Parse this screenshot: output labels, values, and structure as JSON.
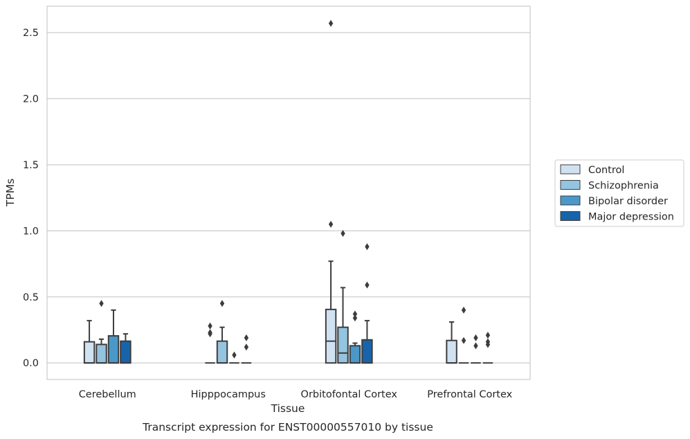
{
  "chart_data": {
    "type": "box",
    "xlabel": "Tissue",
    "ylabel": "TPMs",
    "caption": "Transcript expression for ENST00000557010 by tissue",
    "categories": [
      "Cerebellum",
      "Hipppocampus",
      "Orbitofontal Cortex",
      "Prefrontal Cortex"
    ],
    "ylim": [
      -0.125,
      2.7
    ],
    "yticks": [
      0.0,
      0.5,
      1.0,
      1.5,
      2.0,
      2.5
    ],
    "ytick_labels": [
      "0.0",
      "0.5",
      "1.0",
      "1.5",
      "2.0",
      "2.5"
    ],
    "grid": true,
    "legend_position": "right",
    "series": [
      {
        "name": "Control",
        "color": "#d0e1f2",
        "boxes": [
          {
            "q1": 0.0,
            "median": 0.0,
            "q3": 0.16,
            "whisker_low": 0.0,
            "whisker_high": 0.32,
            "outliers": []
          },
          {
            "q1": 0.0,
            "median": 0.0,
            "q3": 0.0,
            "whisker_low": 0.0,
            "whisker_high": 0.0,
            "outliers": [
              0.22,
              0.23,
              0.28
            ]
          },
          {
            "q1": 0.0,
            "median": 0.165,
            "q3": 0.405,
            "whisker_low": 0.0,
            "whisker_high": 0.77,
            "outliers": [
              1.05,
              2.57
            ]
          },
          {
            "q1": 0.0,
            "median": 0.0,
            "q3": 0.17,
            "whisker_low": 0.0,
            "whisker_high": 0.31,
            "outliers": []
          }
        ]
      },
      {
        "name": "Schizophrenia",
        "color": "#94c4df",
        "boxes": [
          {
            "q1": 0.0,
            "median": 0.0,
            "q3": 0.14,
            "whisker_low": 0.0,
            "whisker_high": 0.18,
            "outliers": [
              0.45
            ]
          },
          {
            "q1": 0.0,
            "median": 0.0,
            "q3": 0.165,
            "whisker_low": 0.0,
            "whisker_high": 0.27,
            "outliers": [
              0.45
            ]
          },
          {
            "q1": 0.0,
            "median": 0.075,
            "q3": 0.27,
            "whisker_low": 0.0,
            "whisker_high": 0.57,
            "outliers": [
              0.98
            ]
          },
          {
            "q1": 0.0,
            "median": 0.0,
            "q3": 0.0,
            "whisker_low": 0.0,
            "whisker_high": 0.0,
            "outliers": [
              0.17,
              0.4
            ]
          }
        ]
      },
      {
        "name": "Bipolar disorder",
        "color": "#4a98c9",
        "boxes": [
          {
            "q1": 0.0,
            "median": 0.0,
            "q3": 0.205,
            "whisker_low": 0.0,
            "whisker_high": 0.4,
            "outliers": []
          },
          {
            "q1": 0.0,
            "median": 0.0,
            "q3": 0.0,
            "whisker_low": 0.0,
            "whisker_high": 0.0,
            "outliers": [
              0.06
            ]
          },
          {
            "q1": 0.0,
            "median": 0.0,
            "q3": 0.13,
            "whisker_low": 0.0,
            "whisker_high": 0.15,
            "outliers": [
              0.34,
              0.37
            ]
          },
          {
            "q1": 0.0,
            "median": 0.0,
            "q3": 0.0,
            "whisker_low": 0.0,
            "whisker_high": 0.0,
            "outliers": [
              0.13,
              0.19
            ]
          }
        ]
      },
      {
        "name": "Major depression",
        "color": "#1764ab",
        "boxes": [
          {
            "q1": 0.0,
            "median": 0.0,
            "q3": 0.165,
            "whisker_low": 0.0,
            "whisker_high": 0.22,
            "outliers": []
          },
          {
            "q1": 0.0,
            "median": 0.0,
            "q3": 0.0,
            "whisker_low": 0.0,
            "whisker_high": 0.0,
            "outliers": [
              0.12,
              0.19
            ]
          },
          {
            "q1": 0.0,
            "median": 0.0,
            "q3": 0.175,
            "whisker_low": 0.0,
            "whisker_high": 0.32,
            "outliers": [
              0.59,
              0.88
            ]
          },
          {
            "q1": 0.0,
            "median": 0.0,
            "q3": 0.0,
            "whisker_low": 0.0,
            "whisker_high": 0.0,
            "outliers": [
              0.14,
              0.16,
              0.21
            ]
          }
        ]
      }
    ]
  }
}
